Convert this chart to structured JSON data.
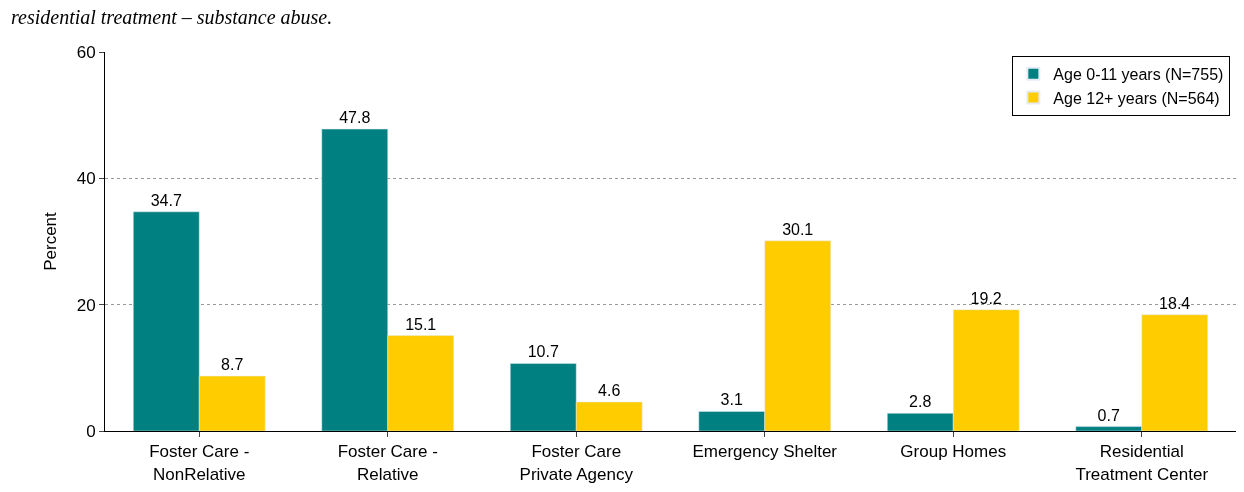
{
  "chart_data": {
    "type": "bar",
    "title": "residential treatment – substance abuse.",
    "ylabel": "Percent",
    "categories": [
      "Foster Care - NonRelative",
      "Foster Care - Relative",
      "Foster Care Private Agency",
      "Emergency Shelter",
      "Group Homes",
      "Residential Treatment Center"
    ],
    "series": [
      {
        "name": "Age 0-11 years (N=755)",
        "color": "#008080",
        "values": [
          34.7,
          47.8,
          10.7,
          3.1,
          2.8,
          0.7
        ]
      },
      {
        "name": "Age 12+ years (N=564)",
        "color": "#ffcc00",
        "values": [
          8.7,
          15.1,
          4.6,
          30.1,
          19.2,
          18.4
        ]
      }
    ],
    "ylim": [
      0,
      60
    ],
    "yticks": [
      0,
      20,
      40,
      60
    ],
    "grid": "y",
    "legend": "top right",
    "data_labels": true
  }
}
